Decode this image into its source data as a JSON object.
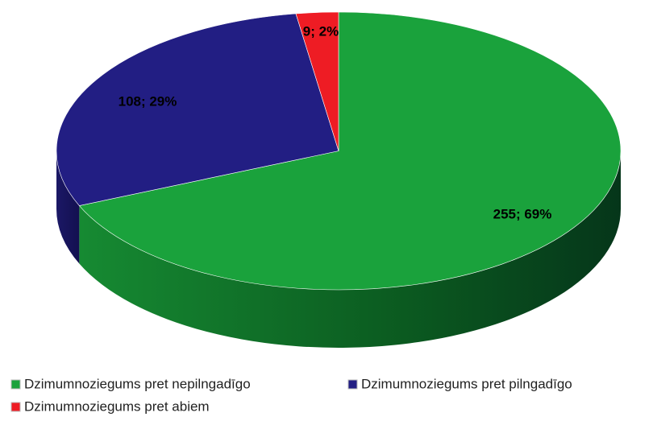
{
  "chart_data": {
    "type": "pie",
    "categories": [
      "Dzimumnoziegums pret nepilngadīgo",
      "Dzimumnoziegums pret pilngadīgo",
      "Dzimumnoziegums pret abiem"
    ],
    "values": [
      255,
      108,
      9
    ],
    "value_labels": [
      "255; 69%",
      "108; 29%",
      "9; 2%"
    ],
    "colors": [
      "#1aa23c",
      "#221e83",
      "#ee1c24"
    ],
    "legend": "bottom"
  }
}
